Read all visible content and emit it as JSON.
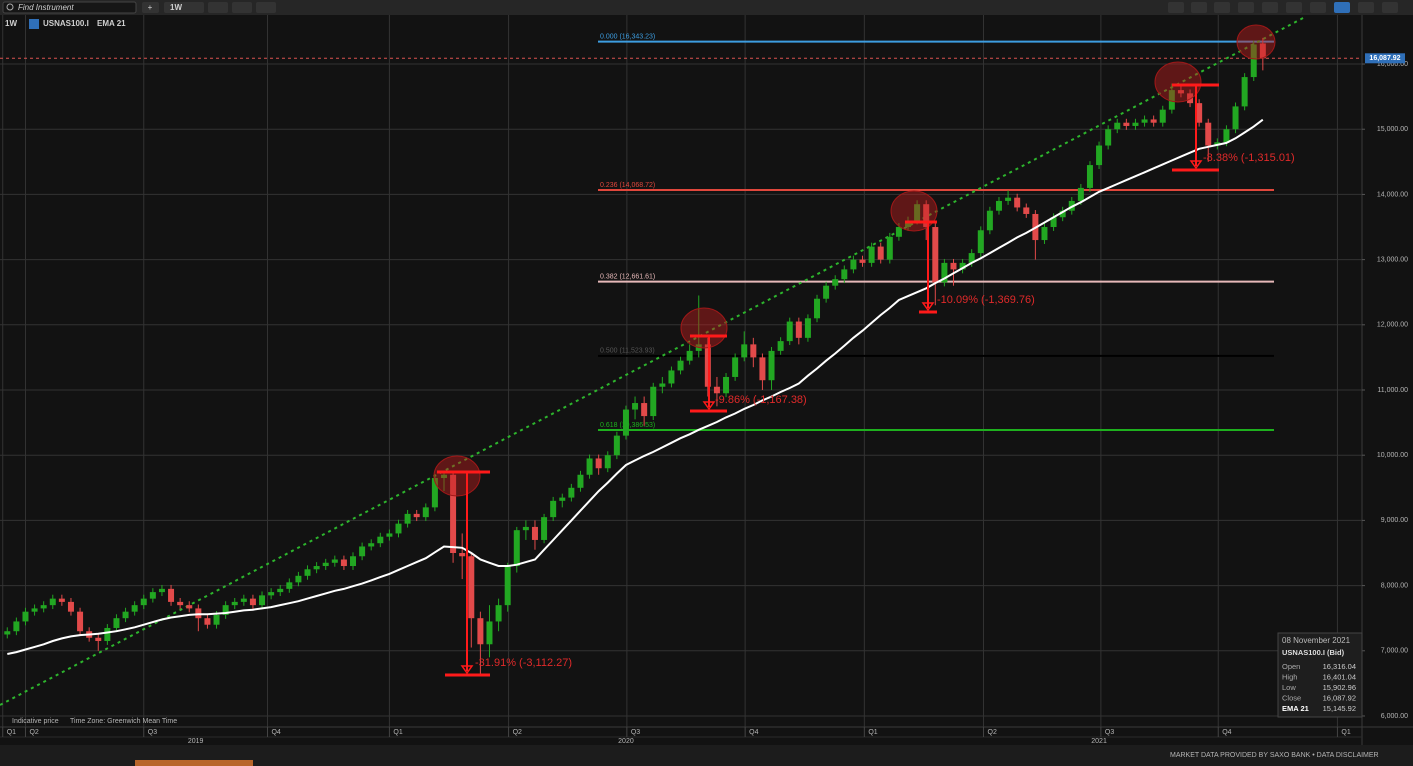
{
  "ui": {
    "search_placeholder": "Find Instrument",
    "add_button": "+",
    "interval_button": "1W",
    "interval_label": "1W",
    "footer_left": "Indicative price",
    "footer_timezone": "Time Zone: Greenwich Mean Time",
    "footer_right": "MARKET DATA PROVIDED BY SAXO BANK • DATA DISCLAIMER"
  },
  "tooltip": {
    "date": "08 November 2021",
    "instrument": "USNAS100.I (Bid)",
    "rows": [
      [
        "Open",
        "16,316.04"
      ],
      [
        "High",
        "16,401.04"
      ],
      [
        "Low",
        "15,902.96"
      ],
      [
        "Close",
        "16,087.92"
      ],
      [
        "EMA 21",
        "15,145.92"
      ]
    ]
  },
  "chart_data": {
    "type": "candlestick",
    "title": "USNAS100.I",
    "grid": true,
    "up_color": "#22a722",
    "down_color": "#e24a4a",
    "categories": [
      null,
      null,
      null,
      null,
      null,
      null,
      null,
      null,
      null,
      null,
      null,
      null,
      null,
      null,
      null,
      null,
      null,
      null,
      null,
      null,
      null,
      null,
      null,
      null,
      null,
      null,
      null,
      null,
      null,
      null,
      null,
      null,
      null,
      null,
      null,
      null,
      null,
      null,
      null,
      null,
      null,
      null,
      null,
      null,
      null,
      null,
      null,
      null,
      null,
      null,
      null,
      null,
      null,
      null,
      null,
      null,
      null,
      null,
      null,
      null,
      null,
      null,
      null,
      null,
      null,
      null,
      null,
      null,
      null,
      null,
      null,
      null,
      null,
      null,
      null,
      null,
      null,
      null,
      null,
      null,
      null,
      null,
      null,
      null,
      null,
      null,
      null,
      null,
      null,
      null,
      null,
      null,
      null,
      null,
      null,
      null,
      null,
      null,
      null,
      null,
      null,
      null,
      null,
      null,
      null,
      null,
      null,
      null,
      null,
      null,
      null,
      null,
      null,
      null,
      null,
      null,
      null,
      null,
      null,
      null,
      null,
      null,
      null,
      null,
      null,
      null,
      null,
      null,
      null,
      null,
      null,
      null,
      null,
      null,
      null,
      null,
      null,
      null,
      null
    ],
    "open": [
      7250,
      7300,
      7450,
      7600,
      7650,
      7700,
      7800,
      7750,
      7600,
      7300,
      7200,
      7150,
      7350,
      7500,
      7600,
      7700,
      7800,
      7900,
      7950,
      7750,
      7700,
      7650,
      7500,
      7400,
      7550,
      7700,
      7750,
      7800,
      7700,
      7850,
      7900,
      7950,
      8050,
      8150,
      8250,
      8300,
      8350,
      8400,
      8300,
      8450,
      8600,
      8650,
      8750,
      8800,
      8950,
      9100,
      9050,
      9200,
      9650,
      9700,
      8500,
      8450,
      7500,
      7100,
      7450,
      7700,
      8300,
      8850,
      8900,
      8700,
      9050,
      9300,
      9350,
      9500,
      9700,
      9950,
      9800,
      10000,
      10300,
      10700,
      10800,
      10600,
      11050,
      11100,
      11300,
      11450,
      11600,
      11700,
      11050,
      10950,
      11200,
      11500,
      11700,
      11500,
      11150,
      11600,
      11750,
      12050,
      11800,
      12100,
      12400,
      12600,
      12700,
      12850,
      13000,
      12950,
      13200,
      13000,
      13350,
      13500,
      13600,
      13850,
      13500,
      12650,
      12950,
      12850,
      12950,
      13100,
      13450,
      13750,
      13900,
      13950,
      13800,
      13700,
      13300,
      13500,
      13650,
      13750,
      13900,
      14100,
      14450,
      14750,
      15000,
      15100,
      15050,
      15100,
      15150,
      15100,
      15300,
      15600,
      15550,
      15400,
      15100,
      14750,
      14800,
      15000,
      15350,
      15800,
      16316.04
    ],
    "high": [
      7360,
      7510,
      7660,
      7710,
      7760,
      7860,
      7860,
      7810,
      7660,
      7360,
      7260,
      7410,
      7560,
      7660,
      7760,
      7860,
      7960,
      8010,
      8010,
      7810,
      7760,
      7710,
      7560,
      7610,
      7760,
      7810,
      7860,
      7860,
      7910,
      7960,
      8010,
      8110,
      8210,
      8310,
      8360,
      8410,
      8460,
      8460,
      8510,
      8660,
      8710,
      8810,
      8860,
      9010,
      9160,
      9160,
      9260,
      9710,
      9740,
      9760,
      8800,
      8500,
      7600,
      7700,
      7800,
      8350,
      8900,
      9000,
      9000,
      9100,
      9360,
      9410,
      9560,
      9760,
      10010,
      10010,
      10060,
      10360,
      10760,
      10900,
      10900,
      11110,
      11200,
      11360,
      11510,
      11700,
      12450,
      11800,
      11200,
      11260,
      11560,
      11900,
      11800,
      11560,
      11660,
      11810,
      12110,
      12110,
      12160,
      12460,
      12660,
      12760,
      12910,
      13060,
      13060,
      13260,
      13260,
      13410,
      13560,
      13660,
      13910,
      13910,
      13560,
      13010,
      13010,
      13010,
      13160,
      13510,
      13810,
      13960,
      14060,
      14010,
      13860,
      13760,
      13560,
      13710,
      13810,
      13960,
      14160,
      14510,
      14810,
      15060,
      15160,
      15160,
      15160,
      15210,
      15210,
      15360,
      15700,
      15660,
      15610,
      15460,
      15160,
      14860,
      15060,
      15410,
      15860,
      16360,
      16401.04
    ],
    "low": [
      7190,
      7240,
      7390,
      7540,
      7590,
      7640,
      7690,
      7540,
      7240,
      7140,
      7000,
      7090,
      7290,
      7440,
      7540,
      7640,
      7740,
      7840,
      7690,
      7640,
      7590,
      7300,
      7340,
      7340,
      7490,
      7640,
      7690,
      7640,
      7640,
      7790,
      7840,
      7890,
      7990,
      8090,
      8190,
      8240,
      8290,
      8240,
      8240,
      8390,
      8540,
      8590,
      8690,
      8740,
      8890,
      8990,
      8990,
      9140,
      9450,
      8350,
      8100,
      7050,
      6630,
      6900,
      7300,
      7600,
      8200,
      8700,
      8550,
      8650,
      8990,
      9200,
      9290,
      9440,
      9640,
      9700,
      9740,
      9940,
      10240,
      10550,
      10450,
      10540,
      10950,
      11040,
      11240,
      11390,
      11500,
      10900,
      10750,
      10890,
      11140,
      11440,
      11350,
      11000,
      11000,
      11540,
      11690,
      11700,
      11740,
      12040,
      12340,
      12540,
      12640,
      12790,
      12890,
      12890,
      12940,
      12940,
      13290,
      13440,
      13540,
      13300,
      12300,
      12590,
      12600,
      12790,
      12890,
      13040,
      13390,
      13690,
      13840,
      13740,
      13640,
      13000,
      13240,
      13440,
      13590,
      13690,
      13840,
      14040,
      14390,
      14690,
      14940,
      14990,
      14990,
      15040,
      15040,
      15040,
      15240,
      15490,
      15340,
      15040,
      14500,
      14690,
      14740,
      14940,
      15290,
      15740,
      15902.96
    ],
    "close": [
      7300,
      7450,
      7600,
      7650,
      7700,
      7800,
      7750,
      7600,
      7300,
      7200,
      7150,
      7350,
      7500,
      7600,
      7700,
      7800,
      7900,
      7950,
      7750,
      7700,
      7650,
      7500,
      7400,
      7550,
      7700,
      7750,
      7800,
      7700,
      7850,
      7900,
      7950,
      8050,
      8150,
      8250,
      8300,
      8350,
      8400,
      8300,
      8450,
      8600,
      8650,
      8750,
      8800,
      8950,
      9100,
      9050,
      9200,
      9650,
      9700,
      8500,
      8450,
      7500,
      7100,
      7450,
      7700,
      8300,
      8850,
      8900,
      8700,
      9050,
      9300,
      9350,
      9500,
      9700,
      9950,
      9800,
      10000,
      10300,
      10700,
      10800,
      10600,
      11050,
      11100,
      11300,
      11450,
      11600,
      11700,
      11050,
      10950,
      11200,
      11500,
      11700,
      11500,
      11150,
      11600,
      11750,
      12050,
      11800,
      12100,
      12400,
      12600,
      12700,
      12850,
      13000,
      12950,
      13200,
      13000,
      13350,
      13500,
      13600,
      13850,
      13500,
      12650,
      12950,
      12850,
      12950,
      13100,
      13450,
      13750,
      13900,
      13950,
      13800,
      13700,
      13300,
      13500,
      13650,
      13750,
      13900,
      14100,
      14450,
      14750,
      15000,
      15100,
      15050,
      15100,
      15150,
      15100,
      15300,
      15600,
      15550,
      15400,
      15100,
      14750,
      14800,
      15000,
      15350,
      15800,
      16300,
      16087.92
    ],
    "ema": {
      "name": "EMA 21",
      "color": "#ffffff",
      "values": [
        6950,
        6980,
        7020,
        7060,
        7100,
        7150,
        7190,
        7220,
        7240,
        7250,
        7260,
        7280,
        7300,
        7330,
        7360,
        7400,
        7440,
        7480,
        7510,
        7530,
        7550,
        7560,
        7560,
        7570,
        7580,
        7600,
        7620,
        7630,
        7650,
        7670,
        7700,
        7730,
        7760,
        7800,
        7840,
        7880,
        7920,
        7950,
        7990,
        8030,
        8080,
        8130,
        8180,
        8240,
        8300,
        8360,
        8420,
        8510,
        8600,
        8590,
        8580,
        8500,
        8400,
        8350,
        8300,
        8300,
        8320,
        8360,
        8400,
        8550,
        8700,
        8850,
        9000,
        9150,
        9300,
        9450,
        9580,
        9720,
        9850,
        9920,
        9990,
        10050,
        10120,
        10190,
        10260,
        10320,
        10390,
        10450,
        10510,
        10580,
        10640,
        10710,
        10770,
        10840,
        10900,
        10970,
        11030,
        11100,
        11220,
        11330,
        11450,
        11560,
        11680,
        11800,
        11910,
        12030,
        12150,
        12260,
        12380,
        12440,
        12500,
        12560,
        12640,
        12710,
        12790,
        12870,
        12950,
        13020,
        13100,
        13180,
        13260,
        13340,
        13410,
        13490,
        13570,
        13650,
        13730,
        13810,
        13880,
        13960,
        14040,
        14100,
        14160,
        14220,
        14280,
        14340,
        14400,
        14460,
        14520,
        14580,
        14640,
        14700,
        14730,
        14760,
        14790,
        14860,
        14950,
        15040,
        15145.92
      ]
    },
    "ylim": [
      5831,
      16752
    ],
    "yticks": [
      {
        "value": 6000,
        "label": "6,000.00"
      },
      {
        "value": 7000,
        "label": "7,000.00"
      },
      {
        "value": 8000,
        "label": "8,000.00"
      },
      {
        "value": 9000,
        "label": "9,000.00"
      },
      {
        "value": 10000,
        "label": "10,000.00"
      },
      {
        "value": 11000,
        "label": "11,000.00"
      },
      {
        "value": 12000,
        "label": "12,000.00"
      },
      {
        "value": 13000,
        "label": "13,000.00"
      },
      {
        "value": 14000,
        "label": "14,000.00"
      },
      {
        "value": 15000,
        "label": "15,000.00"
      },
      {
        "value": 16000,
        "label": "16,000.00"
      }
    ],
    "xlim": [
      -0.8,
      148.9
    ],
    "xticks": [
      {
        "value": -0.5,
        "label": "Q1"
      },
      {
        "value": 2,
        "label": "Q2"
      },
      {
        "value": 15,
        "label": "Q3"
      },
      {
        "value": 28.6,
        "label": "Q4"
      },
      {
        "value": 42,
        "label": "Q1"
      },
      {
        "value": 55.1,
        "label": "Q2"
      },
      {
        "value": 68.1,
        "label": "Q3"
      },
      {
        "value": 81.1,
        "label": "Q4"
      },
      {
        "value": 94.2,
        "label": "Q1"
      },
      {
        "value": 107.3,
        "label": "Q2"
      },
      {
        "value": 120.2,
        "label": "Q3"
      },
      {
        "value": 133.1,
        "label": "Q4"
      },
      {
        "value": 146.2,
        "label": "Q1"
      }
    ],
    "year_labels": [
      {
        "value": 20.7,
        "label": "2019"
      },
      {
        "value": 68,
        "label": "2020"
      },
      {
        "value": 120,
        "label": "2021"
      }
    ],
    "last_price": {
      "value": 16087.92,
      "label": "16,087.92",
      "color": "#d9534f"
    },
    "fib_levels": [
      {
        "label": "0.000 (16,343.23)",
        "value": 16343.23,
        "color": "#3d9de0"
      },
      {
        "label": "0.236 (14,068.72)",
        "value": 14068.72,
        "color": "#e0473c"
      },
      {
        "label": "0.382 (12,661.61)",
        "value": 12661.61,
        "color": "#e6b8b8"
      },
      {
        "label": "0.500 (11,523.93)",
        "value": 11523.93,
        "color": "#000000"
      },
      {
        "label": "0.618 (10,386.53)",
        "value": 10386.53,
        "color": "#1eb01e"
      }
    ],
    "annotations": [
      "-31.91% (-3,112.27)",
      "-9.86% (-1,167.38)",
      "-10.09% (-1,369.76)",
      "-8.38% (-1,315.01)"
    ]
  }
}
